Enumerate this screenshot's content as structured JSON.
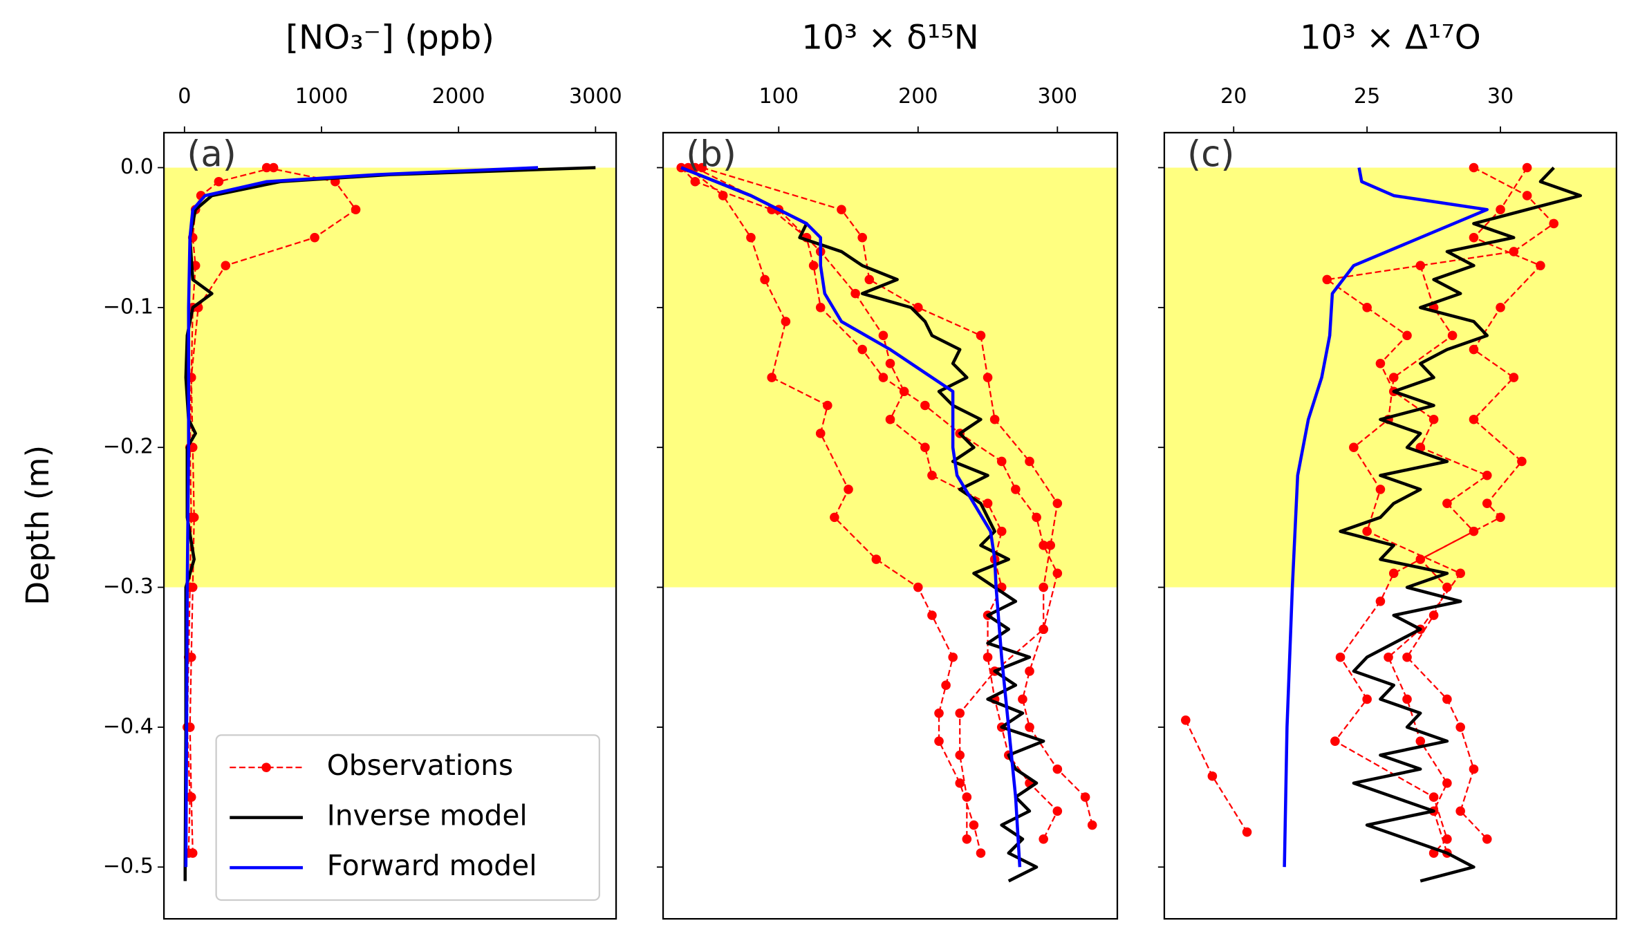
{
  "chart_data": [
    {
      "type": "line",
      "title": "[NO₃⁻] (ppb)",
      "panel_label": "(a)",
      "ylabel": "Depth (m)",
      "xlim": [
        -150,
        3150
      ],
      "xticks": [
        0,
        1000,
        2000,
        3000
      ],
      "ylim": [
        -0.537,
        0.025
      ],
      "yticks": [
        {
          "value": 0,
          "label": "0.0"
        },
        {
          "value": -0.1,
          "label": "−0.1"
        },
        {
          "value": -0.2,
          "label": "−0.2"
        },
        {
          "value": -0.3,
          "label": "−0.3"
        },
        {
          "value": -0.4,
          "label": "−0.4"
        },
        {
          "value": -0.5,
          "label": "−0.5"
        }
      ],
      "shade": [
        -0.3,
        0
      ],
      "shade_color": "#ffff80",
      "legend": "lower left",
      "series": [
        {
          "name": "Observations",
          "color": "#ff0000",
          "linestyle": "dashed",
          "marker": true,
          "profiles": [
            {
              "depths": [
                0,
                -0.01,
                -0.02,
                -0.03,
                -0.05,
                -0.07,
                -0.1,
                -0.15,
                -0.2,
                -0.25,
                -0.3,
                -0.35,
                -0.4,
                -0.45,
                -0.49
              ],
              "values": [
                650,
                250,
                120,
                80,
                60,
                80,
                60,
                50,
                60,
                70,
                60,
                50,
                40,
                50,
                60
              ]
            },
            {
              "depths": [
                0,
                -0.01,
                -0.03,
                -0.05,
                -0.07,
                -0.1,
                -0.15,
                -0.2,
                -0.25,
                -0.3,
                -0.35,
                -0.4,
                -0.45,
                -0.49
              ],
              "values": [
                600,
                1100,
                1250,
                950,
                300,
                100,
                50,
                40,
                50,
                40,
                30,
                20,
                40,
                30
              ]
            }
          ]
        },
        {
          "name": "Inverse model",
          "color": "#000000",
          "linestyle": "solid",
          "marker": false,
          "profiles": [
            {
              "depths": [
                0,
                -0.005,
                -0.01,
                -0.02,
                -0.03,
                -0.05,
                -0.08,
                -0.09,
                -0.1,
                -0.12,
                -0.15,
                -0.18,
                -0.19,
                -0.2,
                -0.25,
                -0.28,
                -0.3,
                -0.4,
                -0.5,
                -0.51
              ],
              "values": [
                3000,
                1500,
                700,
                200,
                80,
                40,
                60,
                200,
                60,
                20,
                10,
                30,
                80,
                20,
                20,
                70,
                10,
                10,
                5,
                5
              ]
            }
          ]
        },
        {
          "name": "Forward model",
          "color": "#0000ff",
          "linestyle": "solid",
          "marker": false,
          "profiles": [
            {
              "depths": [
                0,
                -0.005,
                -0.01,
                -0.02,
                -0.03,
                -0.05,
                -0.1,
                -0.2,
                -0.3,
                -0.4,
                -0.5
              ],
              "values": [
                2580,
                1400,
                600,
                150,
                60,
                40,
                30,
                30,
                20,
                15,
                10
              ]
            }
          ]
        }
      ]
    },
    {
      "type": "line",
      "title": "10³ ×  δ¹⁵N",
      "panel_label": "(b)",
      "xlim": [
        17,
        343
      ],
      "xticks": [
        100,
        200,
        300
      ],
      "ylim": [
        -0.537,
        0.025
      ],
      "shade": [
        -0.3,
        0
      ],
      "shade_color": "#ffff80",
      "series": [
        {
          "color": "#ff0000",
          "linestyle": "dashed",
          "marker": true,
          "profiles": [
            {
              "depths": [
                0,
                -0.01,
                -0.03,
                -0.05,
                -0.07,
                -0.1,
                -0.13,
                -0.15,
                -0.17,
                -0.19,
                -0.21,
                -0.23,
                -0.25,
                -0.27,
                -0.29,
                -0.33,
                -0.36,
                -0.38,
                -0.4,
                -0.43,
                -0.45,
                -0.47
              ],
              "values": [
                30,
                40,
                95,
                120,
                125,
                130,
                160,
                175,
                205,
                230,
                260,
                270,
                285,
                290,
                300,
                290,
                280,
                275,
                280,
                300,
                320,
                325
              ]
            },
            {
              "depths": [
                0,
                -0.02,
                -0.05,
                -0.08,
                -0.11,
                -0.15,
                -0.17,
                -0.19,
                -0.23,
                -0.25,
                -0.28,
                -0.3,
                -0.32,
                -0.35,
                -0.37,
                -0.39,
                -0.41,
                -0.44,
                -0.47,
                -0.49
              ],
              "values": [
                35,
                60,
                80,
                90,
                105,
                95,
                135,
                130,
                150,
                140,
                170,
                200,
                210,
                225,
                220,
                215,
                215,
                230,
                240,
                245
              ]
            },
            {
              "depths": [
                0,
                -0.03,
                -0.06,
                -0.09,
                -0.12,
                -0.14,
                -0.16,
                -0.18,
                -0.2,
                -0.22,
                -0.24,
                -0.26,
                -0.28,
                -0.3,
                -0.32,
                -0.35,
                -0.38,
                -0.4,
                -0.42,
                -0.44,
                -0.46,
                -0.48
              ],
              "values": [
                40,
                100,
                130,
                155,
                175,
                180,
                190,
                180,
                205,
                210,
                250,
                260,
                255,
                260,
                250,
                250,
                255,
                260,
                265,
                280,
                300,
                290
              ]
            },
            {
              "depths": [
                0,
                -0.03,
                -0.05,
                -0.08,
                -0.1,
                -0.12,
                -0.15,
                -0.18,
                -0.21,
                -0.24,
                -0.27,
                -0.3,
                -0.33,
                -0.36,
                -0.39,
                -0.42,
                -0.45,
                -0.48
              ],
              "values": [
                45,
                145,
                160,
                165,
                200,
                245,
                250,
                255,
                280,
                300,
                295,
                290,
                290,
                255,
                230,
                230,
                235,
                235
              ]
            }
          ]
        },
        {
          "color": "#000000",
          "linestyle": "solid",
          "marker": false,
          "profiles": [
            {
              "depths": [
                0,
                -0.01,
                -0.02,
                -0.03,
                -0.04,
                -0.05,
                -0.06,
                -0.07,
                -0.08,
                -0.09,
                -0.1,
                -0.11,
                -0.12,
                -0.13,
                -0.14,
                -0.15,
                -0.16,
                -0.17,
                -0.18,
                -0.19,
                -0.2,
                -0.21,
                -0.22,
                -0.23,
                -0.24,
                -0.25,
                -0.26,
                -0.27,
                -0.28,
                -0.29,
                -0.3,
                -0.31,
                -0.32,
                -0.33,
                -0.34,
                -0.35,
                -0.36,
                -0.37,
                -0.38,
                -0.39,
                -0.4,
                -0.41,
                -0.42,
                -0.43,
                -0.44,
                -0.45,
                -0.46,
                -0.47,
                -0.48,
                -0.49,
                -0.5,
                -0.51
              ],
              "values": [
                30,
                55,
                80,
                100,
                120,
                115,
                145,
                160,
                185,
                160,
                195,
                205,
                210,
                230,
                225,
                235,
                215,
                225,
                245,
                230,
                240,
                225,
                250,
                230,
                245,
                250,
                255,
                245,
                265,
                240,
                255,
                270,
                250,
                265,
                250,
                280,
                255,
                270,
                250,
                275,
                260,
                290,
                265,
                270,
                285,
                270,
                280,
                260,
                275,
                265,
                285,
                265
              ]
            }
          ]
        },
        {
          "color": "#0000ff",
          "linestyle": "solid",
          "marker": false,
          "profiles": [
            {
              "depths": [
                0,
                -0.02,
                -0.04,
                -0.05,
                -0.07,
                -0.09,
                -0.11,
                -0.13,
                -0.15,
                -0.16,
                -0.18,
                -0.2,
                -0.22,
                -0.24,
                -0.26,
                -0.28,
                -0.3,
                -0.35,
                -0.4,
                -0.45,
                -0.5
              ],
              "values": [
                30,
                80,
                120,
                130,
                130,
                133,
                145,
                180,
                210,
                225,
                225,
                225,
                228,
                240,
                252,
                255,
                256,
                260,
                265,
                270,
                273
              ]
            }
          ]
        }
      ]
    },
    {
      "type": "line",
      "title": "10³ ×  Δ¹⁷O",
      "panel_label": "(c)",
      "xlim": [
        17.4,
        34.35
      ],
      "xticks": [
        20,
        25,
        30
      ],
      "ylim": [
        -0.537,
        0.025
      ],
      "shade": [
        -0.3,
        0
      ],
      "shade_color": "#ffff80",
      "series": [
        {
          "color": "#ff0000",
          "linestyle": "dashed",
          "marker": true,
          "profiles": [
            {
              "depths": [
                -0.395,
                -0.435,
                -0.475
              ],
              "values": [
                18.2,
                19.2,
                20.5
              ]
            },
            {
              "depths": [
                0,
                -0.02,
                -0.04,
                -0.06,
                -0.08,
                -0.1,
                -0.12,
                -0.14,
                -0.16,
                -0.18,
                -0.2,
                -0.22,
                -0.24,
                -0.26,
                -0.29,
                -0.31,
                -0.35,
                -0.38,
                -0.41,
                -0.45,
                -0.48,
                -0.49
              ],
              "values": [
                29,
                31,
                32,
                30.5,
                23.5,
                25,
                26.5,
                25.5,
                26,
                27.5,
                27,
                29.5,
                28,
                29,
                26,
                25.5,
                24,
                25,
                23.8,
                27.5,
                28,
                27.5
              ]
            },
            {
              "depths": [
                0,
                -0.03,
                -0.05,
                -0.07,
                -0.1,
                -0.13,
                -0.15,
                -0.18,
                -0.21,
                -0.24,
                -0.25,
                -0.28,
                -0.3,
                -0.32,
                -0.35,
                -0.38,
                -0.4,
                -0.43,
                -0.46,
                -0.48
              ],
              "values": [
                31,
                30,
                29,
                31.5,
                30,
                29,
                30.5,
                29,
                30.8,
                29.5,
                30,
                27,
                28,
                27.5,
                26.5,
                28,
                28.5,
                29,
                28.5,
                29.5
              ]
            },
            {
              "depths": [
                -0.07,
                -0.1,
                -0.12,
                -0.15,
                -0.18,
                -0.2,
                -0.23,
                -0.26,
                -0.29,
                -0.33,
                -0.35,
                -0.38,
                -0.41,
                -0.44,
                -0.46,
                -0.49
              ],
              "values": [
                27,
                27.5,
                28.2,
                26,
                25.8,
                24.5,
                25.5,
                25,
                28.5,
                27,
                25.8,
                26.5,
                27,
                28,
                27.5,
                28
              ]
            }
          ]
        },
        {
          "color": "#000000",
          "linestyle": "solid",
          "marker": false,
          "profiles": [
            {
              "depths": [
                0,
                -0.01,
                -0.02,
                -0.03,
                -0.04,
                -0.05,
                -0.06,
                -0.07,
                -0.08,
                -0.09,
                -0.1,
                -0.11,
                -0.12,
                -0.13,
                -0.14,
                -0.15,
                -0.16,
                -0.17,
                -0.18,
                -0.19,
                -0.2,
                -0.21,
                -0.22,
                -0.23,
                -0.24,
                -0.25,
                -0.26,
                -0.27,
                -0.28,
                -0.29,
                -0.3,
                -0.31,
                -0.32,
                -0.33,
                -0.34,
                -0.35,
                -0.36,
                -0.37,
                -0.38,
                -0.39,
                -0.4,
                -0.41,
                -0.42,
                -0.43,
                -0.44,
                -0.45,
                -0.46,
                -0.47,
                -0.48,
                -0.49,
                -0.5,
                -0.51
              ],
              "values": [
                32,
                31.5,
                33,
                31,
                29,
                30.5,
                28,
                29,
                27.5,
                28.5,
                27,
                29,
                29.5,
                28,
                27,
                27.5,
                26,
                27.5,
                25.5,
                27,
                26.5,
                28,
                25.5,
                27,
                26,
                25.5,
                24,
                26,
                25.5,
                28,
                26.5,
                28.5,
                26,
                27,
                26,
                25,
                24.5,
                26,
                25.5,
                27,
                26.5,
                28,
                25.5,
                27,
                24.5,
                26,
                27.5,
                25,
                26.5,
                28,
                29,
                27
              ]
            }
          ]
        },
        {
          "color": "#0000ff",
          "linestyle": "solid",
          "marker": false,
          "profiles": [
            {
              "depths": [
                0,
                -0.01,
                -0.02,
                -0.03,
                -0.05,
                -0.07,
                -0.09,
                -0.12,
                -0.15,
                -0.18,
                -0.22,
                -0.3,
                -0.4,
                -0.5
              ],
              "values": [
                24.7,
                24.8,
                26,
                29.5,
                27,
                24.5,
                23.7,
                23.6,
                23.3,
                22.8,
                22.4,
                22.2,
                22.0,
                21.9
              ]
            }
          ]
        }
      ]
    }
  ]
}
